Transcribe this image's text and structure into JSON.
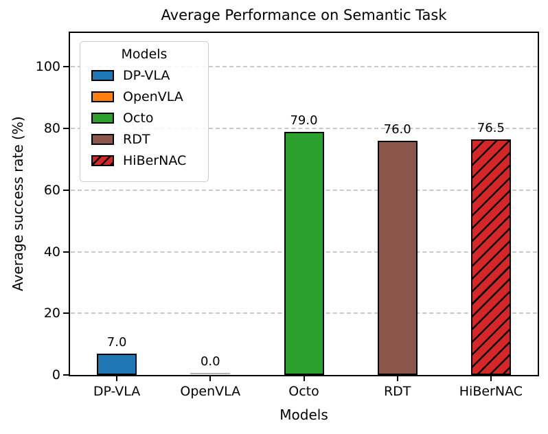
{
  "chart_data": {
    "type": "bar",
    "title": "Average Performance on Semantic Task",
    "xlabel": "Models",
    "ylabel": "Average success rate (%)",
    "categories": [
      "DP-VLA",
      "OpenVLA",
      "Octo",
      "RDT",
      "HiBerNAC"
    ],
    "values": [
      7.0,
      0.0,
      79.0,
      76.0,
      76.5
    ],
    "value_labels": [
      "7.0",
      "0.0",
      "79.0",
      "76.0",
      "76.5"
    ],
    "bar_colors": [
      "#1f77b4",
      "#ff7f0e",
      "#2ca02c",
      "#8c564b",
      "#d62728"
    ],
    "bar_hatches": [
      null,
      null,
      null,
      null,
      "/"
    ],
    "yticks": [
      0,
      20,
      40,
      60,
      80,
      100
    ],
    "ylim": [
      0,
      111
    ],
    "grid": "horizontal dashed",
    "legend_position": "upper left",
    "zero_bar_line_color": "#b0b0b0"
  },
  "legend": {
    "title": "Models",
    "entries": [
      {
        "label": "DP-VLA",
        "color": "#1f77b4",
        "hatch": null
      },
      {
        "label": "OpenVLA",
        "color": "#ff7f0e",
        "hatch": null
      },
      {
        "label": "Octo",
        "color": "#2ca02c",
        "hatch": null
      },
      {
        "label": "RDT",
        "color": "#8c564b",
        "hatch": null
      },
      {
        "label": "HiBerNAC",
        "color": "#d62728",
        "hatch": "/"
      }
    ]
  },
  "colors": {
    "axis": "#000000",
    "grid": "#c9c9c9",
    "background": "#ffffff",
    "hatch": "#000000"
  }
}
